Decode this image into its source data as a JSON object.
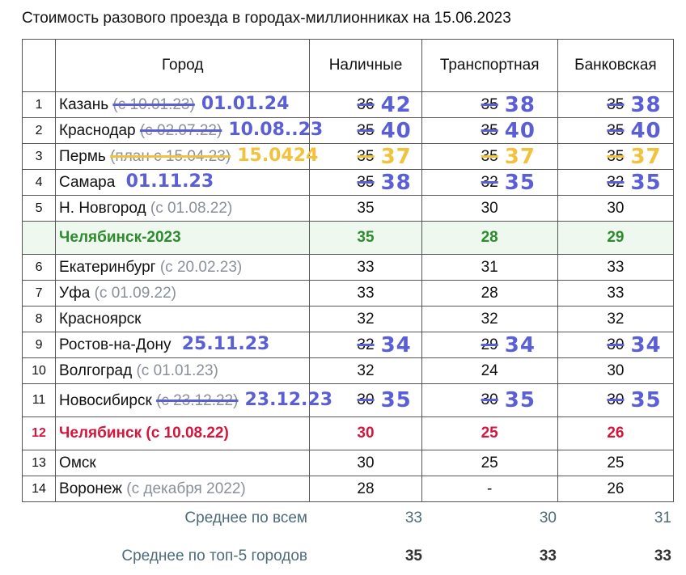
{
  "title": "Стоимость разового проезда в городах-миллионниках на 15.06.2023",
  "headers": {
    "city": "Город",
    "cash": "Наличные",
    "transport": "Транспортная",
    "bank": "Банковская"
  },
  "rows": [
    {
      "num": "1",
      "city": "Казань",
      "note": "(с 10.01.23)",
      "note_struck": true,
      "cash": "36",
      "transport": "35",
      "bank": "35",
      "struck": "blue"
    },
    {
      "num": "2",
      "city": "Краснодар",
      "note": "(с 02.07.22)",
      "note_struck": true,
      "cash": "35",
      "transport": "35",
      "bank": "35",
      "struck": "blue"
    },
    {
      "num": "3",
      "city": "Пермь",
      "note": "(план с 15.04.23)",
      "note_struck": true,
      "cash": "35",
      "transport": "35",
      "bank": "35",
      "struck": "yellow"
    },
    {
      "num": "4",
      "city": "Самара",
      "note": "",
      "cash": "35",
      "transport": "32",
      "bank": "32",
      "struck": "blue"
    },
    {
      "num": "5",
      "city": "Н. Новгород",
      "note": "(с 01.08.22)",
      "cash": "35",
      "transport": "30",
      "bank": "30"
    },
    {
      "num": "",
      "city": "Челябинск-2023",
      "note": "",
      "cash": "35",
      "transport": "28",
      "bank": "29",
      "style": "green"
    },
    {
      "num": "6",
      "city": "Екатеринбург",
      "note": "(с 20.02.23)",
      "cash": "33",
      "transport": "31",
      "bank": "33"
    },
    {
      "num": "7",
      "city": "Уфа",
      "note": "(с 01.09.22)",
      "cash": "33",
      "transport": "28",
      "bank": "33"
    },
    {
      "num": "8",
      "city": "Красноярск",
      "note": "",
      "cash": "32",
      "transport": "32",
      "bank": "32"
    },
    {
      "num": "9",
      "city": "Ростов-на-Дону",
      "note": "",
      "cash": "32",
      "transport": "29",
      "bank": "30",
      "struck": "blue"
    },
    {
      "num": "10",
      "city": "Волгоград ",
      "note": "(с 01.01.23)",
      "cash": "32",
      "transport": "24",
      "bank": "30"
    },
    {
      "num": "11",
      "city": "Новосибирск",
      "note": "(с 23.12.22)",
      "note_struck": true,
      "cash": "30",
      "transport": "30",
      "bank": "30",
      "struck": "blue"
    },
    {
      "num": "12",
      "city": "Челябинск (с 10.08.22)",
      "note": "",
      "cash": "30",
      "transport": "25",
      "bank": "26",
      "style": "red"
    },
    {
      "num": "13",
      "city": "Омск",
      "note": "",
      "cash": "30",
      "transport": "25",
      "bank": "25"
    },
    {
      "num": "14",
      "city": "Воронеж",
      "note": "(с декабря 2022)",
      "cash": "28",
      "transport": "-",
      "bank": "26"
    }
  ],
  "handwritten": [
    {
      "text": "01.01.24",
      "color": "blue"
    },
    {
      "text": "42",
      "color": "blue"
    },
    {
      "text": "38",
      "color": "blue"
    },
    {
      "text": "38",
      "color": "blue"
    },
    {
      "text": "10.08.",
      "color": "blue"
    },
    {
      "text": ".23",
      "color": "blue"
    },
    {
      "text": "40",
      "color": "blue"
    },
    {
      "text": "40",
      "color": "blue"
    },
    {
      "text": "40",
      "color": "blue"
    },
    {
      "text": "15.04",
      "color": "yellow"
    },
    {
      "text": "24",
      "color": "yellow"
    },
    {
      "text": "37",
      "color": "yellow"
    },
    {
      "text": "37",
      "color": "yellow"
    },
    {
      "text": "37",
      "color": "yellow"
    },
    {
      "text": "01.11.23",
      "color": "blue"
    },
    {
      "text": "38",
      "color": "blue"
    },
    {
      "text": "35",
      "color": "blue"
    },
    {
      "text": "35",
      "color": "blue"
    },
    {
      "text": "25.11.23",
      "color": "blue"
    },
    {
      "text": "34",
      "color": "blue"
    },
    {
      "text": "34",
      "color": "blue"
    },
    {
      "text": "34",
      "color": "blue"
    },
    {
      "text": "35",
      "color": "blue"
    },
    {
      "text": "35",
      "color": "blue"
    },
    {
      "text": "35",
      "color": "blue"
    },
    {
      "text": "23.12.23",
      "color": "blue"
    }
  ],
  "footer": {
    "avg_all_label": "Среднее по всем",
    "avg_all": [
      "33",
      "30",
      "31"
    ],
    "avg_top5_label": "Среднее по топ-5 городов",
    "avg_top5": [
      "35",
      "33",
      "33"
    ]
  },
  "colors": {
    "handwriting_blue": "#5a5fd6",
    "handwriting_yellow": "#f2c23c",
    "green": "#2e8b2e",
    "red": "#d4163c"
  }
}
